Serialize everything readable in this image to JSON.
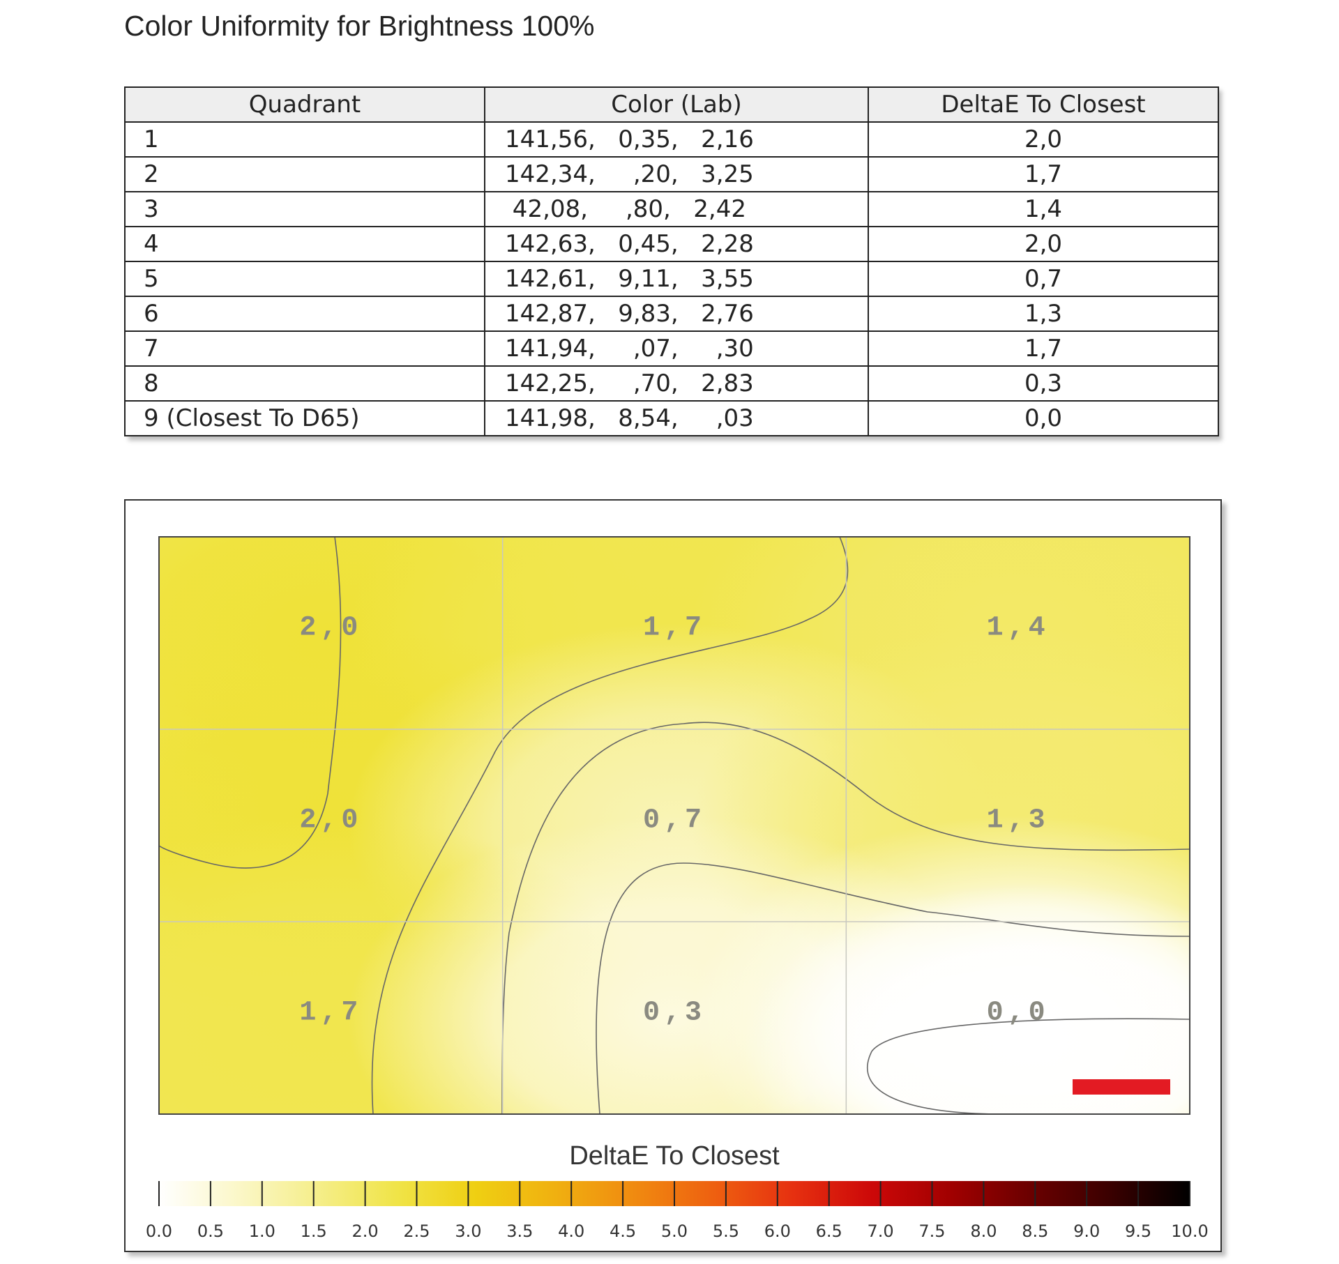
{
  "title": "Color Uniformity for Brightness 100%",
  "table": {
    "headers": [
      "Quadrant",
      "Color (Lab)",
      "DeltaE To Closest"
    ],
    "rows": [
      {
        "quadrant": "1",
        "lab": "141,56,   0,35,   2,16",
        "deltae": "2,0"
      },
      {
        "quadrant": "2",
        "lab": "142,34,     ,20,   3,25",
        "deltae": "1,7"
      },
      {
        "quadrant": "3",
        "lab": " 42,08,     ,80,   2,42",
        "deltae": "1,4"
      },
      {
        "quadrant": "4",
        "lab": "142,63,   0,45,   2,28",
        "deltae": "2,0"
      },
      {
        "quadrant": "5",
        "lab": "142,61,   9,11,   3,55",
        "deltae": "0,7"
      },
      {
        "quadrant": "6",
        "lab": "142,87,   9,83,   2,76",
        "deltae": "1,3"
      },
      {
        "quadrant": "7",
        "lab": "141,94,     ,07,     ,30",
        "deltae": "1,7"
      },
      {
        "quadrant": "8",
        "lab": "142,25,     ,70,   2,83",
        "deltae": "0,3"
      },
      {
        "quadrant": "9 (Closest To D65)",
        "lab": "141,98,   8,54,     ,03",
        "deltae": "0,0"
      }
    ]
  },
  "chart_data": {
    "type": "heatmap",
    "title": "DeltaE To Closest",
    "grid": {
      "rows": 3,
      "cols": 3
    },
    "cells": [
      [
        "2,0",
        "1,7",
        "1,4"
      ],
      [
        "2,0",
        "0,7",
        "1,3"
      ],
      [
        "1,7",
        "0,3",
        "0,0"
      ]
    ],
    "values": [
      [
        2.0,
        1.7,
        1.4
      ],
      [
        2.0,
        0.7,
        1.3
      ],
      [
        1.7,
        0.3,
        0.0
      ]
    ],
    "colorbar": {
      "min": 0.0,
      "max": 10.0,
      "tick_labels": [
        "0.0",
        "0.5",
        "1.0",
        "1.5",
        "2.0",
        "2.5",
        "3.0",
        "3.5",
        "4.0",
        "4.5",
        "5.0",
        "5.5",
        "6.0",
        "6.5",
        "7.0",
        "7.5",
        "8.0",
        "8.5",
        "9.0",
        "9.5",
        "10.0"
      ]
    },
    "marker_color": "#e31b23",
    "colors": {
      "scale": [
        "#ffffff",
        "#fbf7c8",
        "#f5ee8a",
        "#f0e448",
        "#efcf12",
        "#f0b010",
        "#f08a10",
        "#ee6010",
        "#e63010",
        "#cc0808",
        "#a00000",
        "#6a0000",
        "#3a0000",
        "#000000"
      ]
    }
  }
}
